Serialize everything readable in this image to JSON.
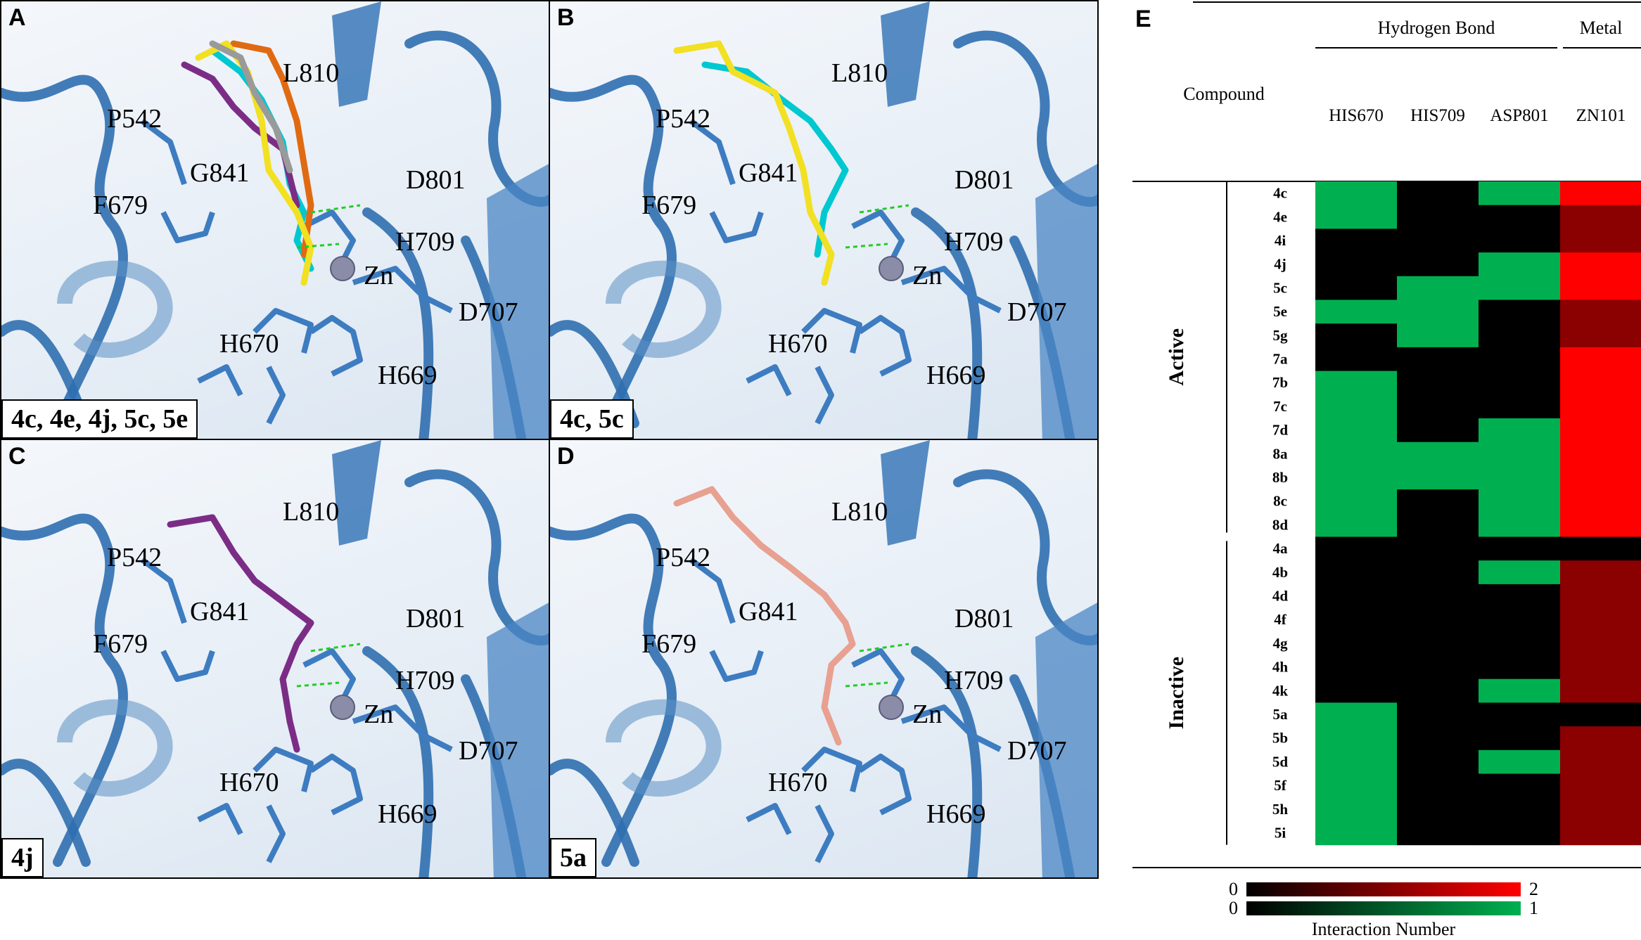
{
  "panels": {
    "A": {
      "letter": "A",
      "caption": "4c, 4e, 4j, 5c, 5e",
      "labels": [
        "L810",
        "P542",
        "G841",
        "D801",
        "F679",
        "H709",
        "Zn",
        "D707",
        "H670",
        "H669"
      ],
      "ligand_colors": [
        "#00c8d0",
        "#7b2d86",
        "#e06a12",
        "#f2e022",
        "#9a9a9a"
      ]
    },
    "B": {
      "letter": "B",
      "caption": "4c, 5c",
      "labels": [
        "L810",
        "P542",
        "G841",
        "D801",
        "F679",
        "H709",
        "Zn",
        "D707",
        "H670",
        "H669"
      ],
      "ligand_colors": [
        "#00c8d0",
        "#f2e022"
      ]
    },
    "C": {
      "letter": "C",
      "caption": "4j",
      "labels": [
        "L810",
        "P542",
        "G841",
        "D801",
        "F679",
        "H709",
        "Zn",
        "D707",
        "H670",
        "H669"
      ],
      "ligand_colors": [
        "#7b2d86"
      ]
    },
    "D": {
      "letter": "D",
      "caption": "5a",
      "labels": [
        "L810",
        "P542",
        "G841",
        "D801",
        "F679",
        "H709",
        "Zn",
        "D707",
        "H670",
        "H669"
      ],
      "ligand_colors": [
        "#e8a090"
      ]
    }
  },
  "chart_data": {
    "type": "heatmap",
    "panel_letter": "E",
    "header": {
      "row_label": "Compound",
      "groups": [
        {
          "label": "Hydrogen Bond",
          "columns": [
            "HIS670",
            "HIS709",
            "ASP801"
          ]
        },
        {
          "label": "Metal",
          "columns": [
            "ZN101"
          ]
        }
      ]
    },
    "columns": [
      "HIS670",
      "HIS709",
      "ASP801",
      "ZN101"
    ],
    "row_groups": [
      {
        "label": "Active",
        "rows": [
          "4c",
          "4e",
          "4i",
          "4j",
          "5c",
          "5e",
          "5g",
          "7a",
          "7b",
          "7c",
          "7d",
          "8a",
          "8b",
          "8c",
          "8d"
        ]
      },
      {
        "label": "Inactive",
        "rows": [
          "4a",
          "4b",
          "4d",
          "4f",
          "4g",
          "4h",
          "4k",
          "5a",
          "5b",
          "5d",
          "5f",
          "5h",
          "5i"
        ]
      }
    ],
    "values": {
      "4c": [
        1,
        0,
        1,
        2
      ],
      "4e": [
        1,
        0,
        0,
        1
      ],
      "4i": [
        0,
        0,
        0,
        1
      ],
      "4j": [
        0,
        0,
        1,
        2
      ],
      "5c": [
        0,
        1,
        1,
        2
      ],
      "5e": [
        1,
        1,
        0,
        1
      ],
      "5g": [
        0,
        1,
        0,
        1
      ],
      "7a": [
        0,
        0,
        0,
        2
      ],
      "7b": [
        1,
        0,
        0,
        2
      ],
      "7c": [
        1,
        0,
        0,
        2
      ],
      "7d": [
        1,
        0,
        1,
        2
      ],
      "8a": [
        1,
        1,
        1,
        2
      ],
      "8b": [
        1,
        1,
        1,
        2
      ],
      "8c": [
        1,
        0,
        1,
        2
      ],
      "8d": [
        1,
        0,
        1,
        2
      ],
      "4a": [
        0,
        0,
        0,
        0
      ],
      "4b": [
        0,
        0,
        1,
        1
      ],
      "4d": [
        0,
        0,
        0,
        1
      ],
      "4f": [
        0,
        0,
        0,
        1
      ],
      "4g": [
        0,
        0,
        0,
        1
      ],
      "4h": [
        0,
        0,
        0,
        1
      ],
      "4k": [
        0,
        0,
        1,
        1
      ],
      "5a": [
        1,
        0,
        0,
        0
      ],
      "5b": [
        1,
        0,
        0,
        1
      ],
      "5d": [
        1,
        0,
        1,
        1
      ],
      "5f": [
        1,
        0,
        0,
        1
      ],
      "5h": [
        1,
        0,
        0,
        1
      ],
      "5i": [
        1,
        0,
        0,
        1
      ]
    },
    "scales": [
      {
        "kind": "metal",
        "min": 0,
        "max": 2,
        "colors": [
          "#000000",
          "#ff0000"
        ]
      },
      {
        "kind": "hbond",
        "min": 0,
        "max": 1,
        "colors": [
          "#000000",
          "#00b050"
        ]
      }
    ],
    "scale_title": "Interaction Number",
    "colors": {
      "hbond_on": "#00b050",
      "off": "#000000",
      "metal_one": "#8b0000",
      "metal_two": "#ff0000"
    }
  }
}
